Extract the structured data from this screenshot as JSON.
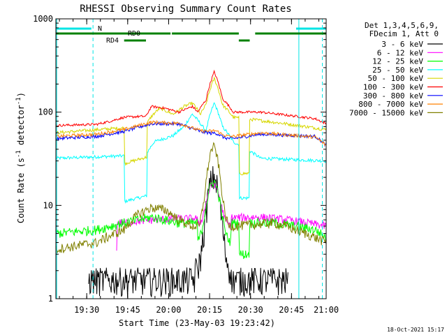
{
  "chart_data": {
    "type": "line",
    "title": "RHESSI Observing Summary Count Rates",
    "xlabel": "Start Time (23-May-03 19:23:42)",
    "ylabel_main": "Count Rate (s",
    "ylabel_sup1": "-1",
    "ylabel_mid": " detector",
    "ylabel_sup2": "-1",
    "ylabel_end": ")",
    "y_scale": "log",
    "ylim": [
      1,
      1000
    ],
    "xlim_minutes": [
      -5,
      94
    ],
    "x_ticks": [
      {
        "label": "19:30",
        "m": 6.3
      },
      {
        "label": "19:45",
        "m": 21.3
      },
      {
        "label": "20:00",
        "m": 36.3
      },
      {
        "label": "20:15",
        "m": 51.3
      },
      {
        "label": "20:30",
        "m": 66.3
      },
      {
        "label": "20:45",
        "m": 81.3
      },
      {
        "label": "21:00",
        "m": 96.3
      }
    ],
    "y_ticks": [
      {
        "label": "1",
        "v": 1
      },
      {
        "label": "10",
        "v": 10
      },
      {
        "label": "100",
        "v": 100
      },
      {
        "label": "1000",
        "v": 1000
      }
    ],
    "legend_header": [
      "Det 1,3,4,5,6,9,",
      "FDecim 1, Att 0"
    ],
    "legend_position": "top-right-outside",
    "series": [
      {
        "name": "3 - 6 keV",
        "color": "#000000"
      },
      {
        "name": "6 - 12 keV",
        "color": "#ff00ff"
      },
      {
        "name": "12 - 25 keV",
        "color": "#00ff00"
      },
      {
        "name": "25 - 50 keV",
        "color": "#00ffff"
      },
      {
        "name": "50 - 100 keV",
        "color": "#d7d700"
      },
      {
        "name": "100 - 300 keV",
        "color": "#ff0000"
      },
      {
        "name": "300 - 800 keV",
        "color": "#0000ff"
      },
      {
        "name": "800 - 7000 keV",
        "color": "#ff8000"
      },
      {
        "name": "7000 - 15000 keV",
        "color": "#808000"
      }
    ],
    "flags": [
      {
        "label": "N",
        "color": "#00e5e5",
        "segments": [
          [
            -5,
            8
          ],
          [
            83,
            94
          ]
        ]
      },
      {
        "label": "RD0",
        "color": "#008000",
        "segments": [
          [
            -5,
            37
          ],
          [
            37.5,
            62
          ],
          [
            68,
            94
          ]
        ]
      },
      {
        "label": "RD4",
        "color": "#008000",
        "segments": [
          [
            20,
            28
          ],
          [
            62,
            66
          ]
        ]
      }
    ],
    "vertical_lines": [
      {
        "m": 8.6,
        "style": "dashed",
        "color": "#00e5e5"
      },
      {
        "m": 84,
        "style": "solid",
        "color": "#00e5e5"
      },
      {
        "m": 92.6,
        "style": "dashed",
        "color": "#00e5e5"
      },
      {
        "m": -4.7,
        "style": "solid",
        "color": "#00e5e5"
      }
    ]
  },
  "footer_timestamp": "18-Oct-2021 15:17"
}
